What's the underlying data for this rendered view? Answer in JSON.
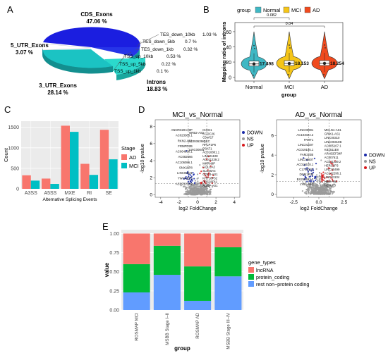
{
  "panel_letters": {
    "a": "A",
    "b": "B",
    "c": "C",
    "d": "D",
    "e": "E"
  },
  "colors": {
    "normal": "#3fb8c4",
    "mci": "#f5c518",
    "ad": "#f04a1e",
    "ad_bar": "#f8766d",
    "mci_bar": "#00bfc4",
    "down": "#1a2aa8",
    "ns": "#9a9a9a",
    "up": "#d7191c",
    "lncrna": "#f8766d",
    "protein_coding": "#00ba38",
    "rest": "#619cff",
    "pie_cds": "#1b1ee0",
    "pie_intron": "#25d4c8",
    "pie_utr3": "#1bb9b9",
    "pie_utr5": "#ffffff"
  },
  "chart_data": [
    {
      "id": "A",
      "type": "pie",
      "slices": [
        {
          "label": "CDS_Exons",
          "value": 47.06,
          "pct": "47.06 %"
        },
        {
          "label": "Introns",
          "value": 18.83,
          "pct": "18.83 %"
        },
        {
          "label": "3_UTR_Exons",
          "value": 28.14,
          "pct": "28.14 %"
        },
        {
          "label": "5_UTR_Exons",
          "value": 3.07,
          "pct": "3.07 %"
        },
        {
          "label": "TES_down_10kb",
          "value": 1.03,
          "pct": "1.03 %"
        },
        {
          "label": "TES_down_5kb",
          "value": 0.7,
          "pct": "0.7 %"
        },
        {
          "label": "TES_down_1kb",
          "value": 0.32,
          "pct": "0.32 %"
        },
        {
          "label": "TSS_up_10kb",
          "value": 0.53,
          "pct": "0.53 %"
        },
        {
          "label": "TSS_up_5kb",
          "value": 0.22,
          "pct": "0.22 %"
        },
        {
          "label": "TSS_up_1kb",
          "value": 0.1,
          "pct": "0.1 %"
        }
      ]
    },
    {
      "id": "B",
      "type": "violin",
      "legend_title": "group",
      "xlabel": "group",
      "ylabel": "Mapping ratio of introns",
      "categories": [
        "Normal",
        "MCI",
        "AD"
      ],
      "yticks": [
        0,
        20,
        40,
        60
      ],
      "ylim": [
        -5,
        72
      ],
      "means": [
        17.498,
        18.153,
        18.254
      ],
      "mean_labels": [
        "17.498",
        "18.153",
        "18.254"
      ],
      "pvalues": [
        "0.082",
        "0.04"
      ]
    },
    {
      "id": "C",
      "type": "bar",
      "xlabel": "Alternative Splicing Events",
      "ylabel": "Count",
      "legend_title": "Stage",
      "categories": [
        "A3SS",
        "A5SS",
        "MXE",
        "RI",
        "SE"
      ],
      "series": [
        {
          "name": "AD",
          "values": [
            330,
            250,
            1540,
            610,
            1440
          ]
        },
        {
          "name": "MCI",
          "values": [
            200,
            120,
            1390,
            340,
            720
          ]
        }
      ],
      "yticks": [
        0,
        500,
        1000,
        1500
      ],
      "ylim": [
        0,
        1650
      ]
    },
    {
      "id": "D1",
      "type": "scatter",
      "title": "MCI_vs_Normal",
      "xlabel": "log2 FoldChange",
      "ylabel": "-log10 pvalue",
      "xticks": [
        -4,
        -2,
        0,
        2,
        4
      ],
      "yticks": [
        0,
        2,
        4,
        6,
        8
      ],
      "xlim": [
        -4.6,
        4.6
      ],
      "ylim": [
        -0.3,
        8.8
      ],
      "legend": [
        "DOWN",
        "NS",
        "UP"
      ],
      "labels_down": [
        "ANKRD20A19P",
        "AC023385.1",
        "RKN2-AS1",
        "FRMPD2B",
        "AC064830.1",
        "AC082666",
        "AC106086.1",
        "SNX18P8",
        "LINC00941",
        "YWHAEP5",
        "AC023150.2"
      ],
      "labels_up": [
        "IGHG1",
        "CCDC26",
        "C5orf17",
        "IQKC",
        "RPLP1P6",
        "PSAT1",
        "AC010801.1",
        "LINC01108",
        "AC011239.2",
        "MKRN9P",
        "GOLGA2",
        "SLC45A4",
        "GDD3-AS1",
        "KRT18P52",
        "RPS28P11",
        "ADNP-AS1"
      ],
      "labels_ns": [
        "NRB2-AS1",
        "AC093639.1",
        "LINC00841"
      ]
    },
    {
      "id": "D2",
      "type": "scatter",
      "title": "AD_vs_Normal",
      "xlabel": "log2 FoldChange",
      "ylabel": "-log10 pvalue",
      "xticks": [
        -2.5,
        0,
        2.5
      ],
      "xtick_labels": [
        "-2.5",
        "0.0",
        "2.5"
      ],
      "yticks": [
        0,
        2,
        4,
        6
      ],
      "xlim": [
        -4.2,
        4.2
      ],
      "ylim": [
        -0.3,
        7.6
      ],
      "legend": [
        "DOWN",
        "NS",
        "UP"
      ],
      "labels_down": [
        "LINC00891",
        "AC104024.2",
        "PART1",
        "LINC01007",
        "AC019185.1",
        "FAM223B",
        "LINC00507",
        "AC016578.1",
        "C17orf102",
        "DNM1P35",
        "BX255923.3",
        "LY86-AS1"
      ],
      "labels_up": [
        "MCLN1-AS1",
        "GRIK1-AS1",
        "LINC00310",
        "LINC00310B",
        "AC005107.1",
        "KB1511E8",
        "ARHGEF34P",
        "AC007611",
        "AC011239.2",
        "HERC2P3",
        "LINC00499",
        "AC142296.1",
        "LINC01134",
        "HPN-AS1",
        "NEFLP3"
      ]
    },
    {
      "id": "E",
      "type": "bar",
      "stacked": true,
      "xlabel": "group",
      "ylabel": "value",
      "legend_title": "gene_types",
      "categories": [
        "ROSMAP MCI",
        "MSBB Stage I–II",
        "ROSMAP AD",
        "MSBB Stage III–IV"
      ],
      "series": [
        {
          "name": "rest non−protein coding",
          "values": [
            0.23,
            0.46,
            0.12,
            0.44
          ]
        },
        {
          "name": "protein_coding",
          "values": [
            0.37,
            0.38,
            0.45,
            0.38
          ]
        },
        {
          "name": "lncRNA",
          "values": [
            0.4,
            0.16,
            0.43,
            0.18
          ]
        }
      ],
      "yticks": [
        0,
        0.25,
        0.5,
        0.75,
        1
      ],
      "ytick_labels": [
        "0.00",
        "0.25",
        "0.50",
        "0.75",
        "1.00"
      ],
      "ylim": [
        0,
        1.05
      ]
    }
  ]
}
